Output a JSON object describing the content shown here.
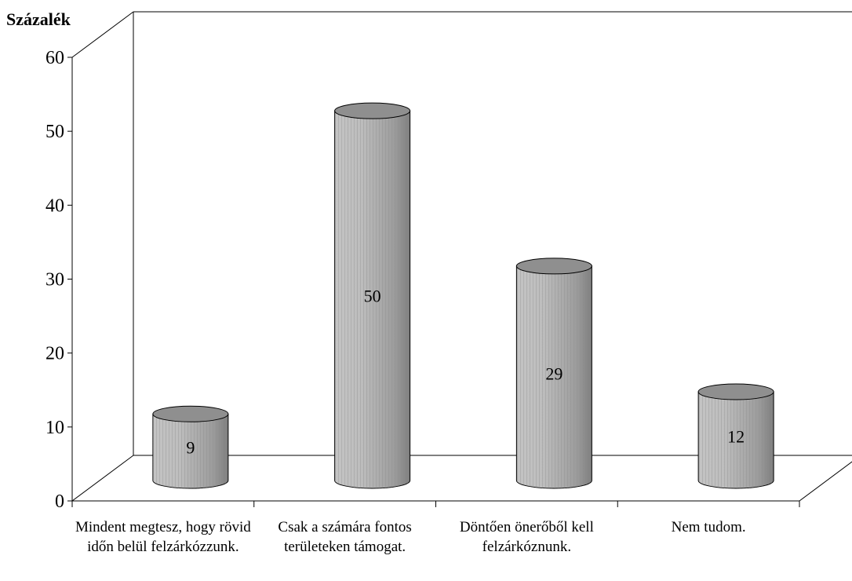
{
  "chart_data": {
    "type": "bar",
    "title": "",
    "ylabel": "Százalék",
    "xlabel": "",
    "ylim": [
      0,
      60
    ],
    "yticks": [
      0,
      10,
      20,
      30,
      40,
      50,
      60
    ],
    "categories": [
      "Mindent megtesz, hogy rövid időn belül felzárkózzunk.",
      "Csak a számára fontos területeken támogat.",
      "Döntően önerőből kell felzárkóznunk.",
      "Nem tudom."
    ],
    "values": [
      9,
      50,
      29,
      12
    ],
    "data_labels": [
      "9",
      "50",
      "29",
      "12"
    ],
    "bar_style": "3d-cylinder",
    "bar_color": "#b0b0b0",
    "grid": false,
    "legend": "none"
  }
}
